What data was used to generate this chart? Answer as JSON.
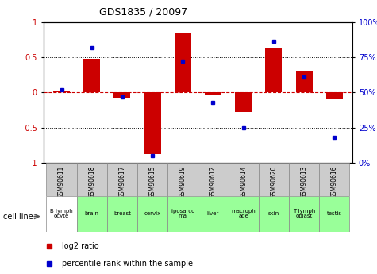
{
  "title": "GDS1835 / 20097",
  "samples": [
    "GSM90611",
    "GSM90618",
    "GSM90617",
    "GSM90615",
    "GSM90619",
    "GSM90612",
    "GSM90614",
    "GSM90620",
    "GSM90613",
    "GSM90616"
  ],
  "cell_lines": [
    "B lymph\nocyte",
    "brain",
    "breast",
    "cervix",
    "liposarco\nma",
    "liver",
    "macroph\nage",
    "skin",
    "T lymph\noblast",
    "testis"
  ],
  "cell_line_colors": [
    "#ffffff",
    "#99ff99",
    "#99ff99",
    "#99ff99",
    "#99ff99",
    "#99ff99",
    "#99ff99",
    "#99ff99",
    "#99ff99",
    "#99ff99"
  ],
  "log2_ratio": [
    0.02,
    0.48,
    -0.08,
    -0.87,
    0.84,
    -0.04,
    -0.28,
    0.62,
    0.3,
    -0.1
  ],
  "percentile_rank": [
    52,
    82,
    47,
    5,
    72,
    43,
    25,
    86,
    61,
    18
  ],
  "bar_color": "#cc0000",
  "dot_color": "#0000cc",
  "ylim_left": [
    -1,
    1
  ],
  "ylim_right": [
    0,
    100
  ],
  "yticks_left": [
    -1,
    -0.5,
    0,
    0.5,
    1
  ],
  "yticks_right": [
    0,
    25,
    50,
    75,
    100
  ],
  "bg_color": "#ffffff",
  "zero_line_color": "#cc0000",
  "legend_log2": "log2 ratio",
  "legend_pct": "percentile rank within the sample",
  "bar_width": 0.55,
  "gsm_bg": "#cccccc",
  "cell_line_first_color": "#ffffff"
}
